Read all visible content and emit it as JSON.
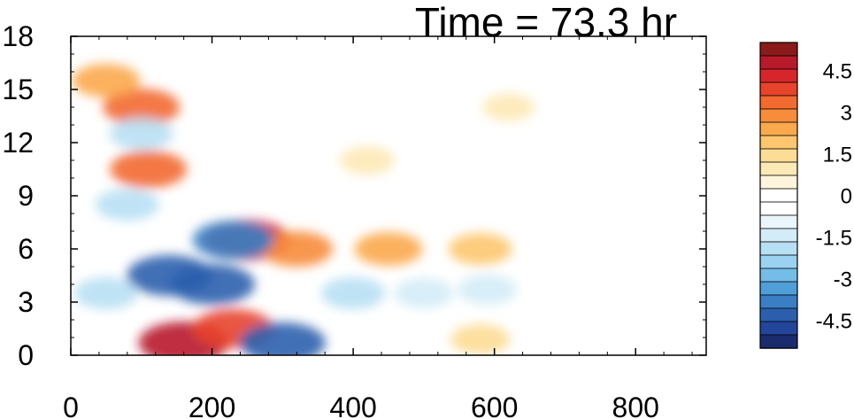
{
  "chart_data": {
    "type": "heatmap",
    "title": "Time = 73.3 hr",
    "xlabel": "",
    "ylabel": "",
    "xlim": [
      0,
      900
    ],
    "ylim": [
      0,
      18
    ],
    "x_ticks": [
      "0",
      "200",
      "400",
      "600",
      "800"
    ],
    "y_ticks": [
      "0",
      "3",
      "6",
      "9",
      "12",
      "15",
      "18"
    ],
    "colorbar": {
      "min": -5.5,
      "max": 5.5,
      "step": 0.5,
      "tick_labels": [
        "4.5",
        "3",
        "1.5",
        "0",
        "-1.5",
        "-3",
        "-4.5"
      ],
      "colors": [
        "#8b1a1a",
        "#b8192b",
        "#d7262b",
        "#e8432b",
        "#f26a30",
        "#f78c3a",
        "#fba94d",
        "#fdc66e",
        "#fddc95",
        "#fde9b6",
        "#fff5dc",
        "#ffffff",
        "#ffffff",
        "#eaf6fb",
        "#d4ecf7",
        "#b8e0f4",
        "#9ad2f1",
        "#74bde9",
        "#4f9fd9",
        "#3a7fc4",
        "#2b5fae",
        "#23459a",
        "#1a2c6e"
      ]
    },
    "features": [
      {
        "x": 160,
        "y": 0.7,
        "value": 5.0
      },
      {
        "x": 250,
        "y": 6.5,
        "value": 4.5
      },
      {
        "x": 320,
        "y": 6.0,
        "value": 3.0
      },
      {
        "x": 450,
        "y": 6.0,
        "value": 2.5
      },
      {
        "x": 580,
        "y": 6.0,
        "value": 2.0
      },
      {
        "x": 230,
        "y": 1.5,
        "value": 4.0
      },
      {
        "x": 100,
        "y": 14.0,
        "value": 3.5
      },
      {
        "x": 110,
        "y": 10.5,
        "value": 3.5
      },
      {
        "x": 50,
        "y": 15.5,
        "value": 2.5
      },
      {
        "x": 140,
        "y": 4.5,
        "value": -4.5
      },
      {
        "x": 200,
        "y": 4.0,
        "value": -4.5
      },
      {
        "x": 230,
        "y": 6.5,
        "value": -4.0
      },
      {
        "x": 300,
        "y": 0.7,
        "value": -4.5
      },
      {
        "x": 400,
        "y": 3.5,
        "value": -2.0
      },
      {
        "x": 500,
        "y": 3.5,
        "value": -1.5
      },
      {
        "x": 590,
        "y": 3.7,
        "value": -1.5
      },
      {
        "x": 50,
        "y": 3.5,
        "value": -2.0
      },
      {
        "x": 100,
        "y": 12.5,
        "value": -2.0
      },
      {
        "x": 80,
        "y": 8.5,
        "value": -2.0
      },
      {
        "x": 420,
        "y": 11.0,
        "value": 1.0
      },
      {
        "x": 620,
        "y": 14.0,
        "value": 0.7
      },
      {
        "x": 580,
        "y": 0.9,
        "value": 1.5
      }
    ]
  }
}
